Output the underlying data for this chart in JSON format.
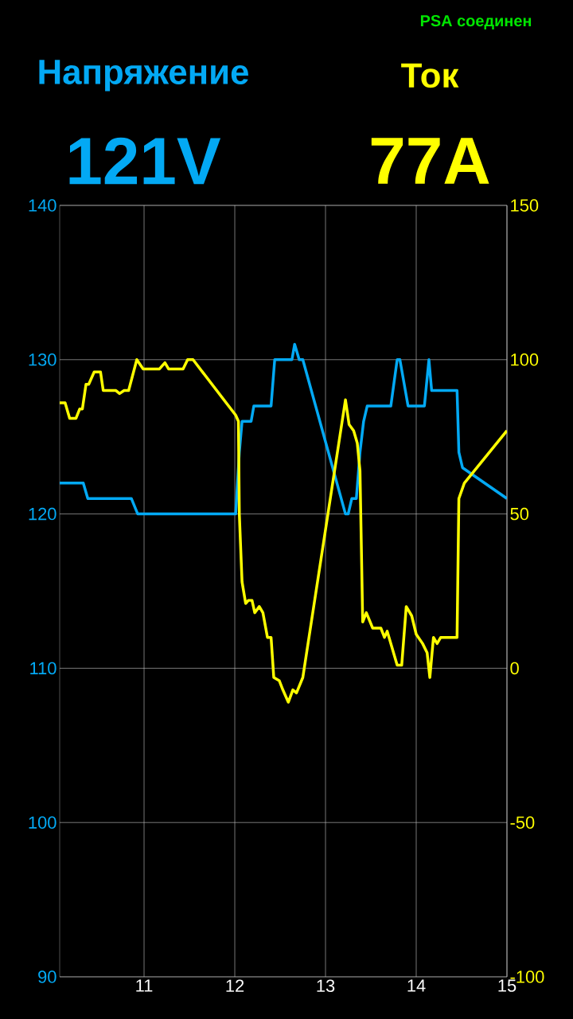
{
  "chart_data": {
    "type": "line",
    "annotations": [
      "PSA соединен",
      "121V",
      "77A"
    ],
    "xlim": [
      10.07,
      15.0
    ],
    "xticks": [
      11,
      12,
      13,
      14,
      15
    ],
    "ylim": [
      90,
      140
    ],
    "yticks": [
      90,
      100,
      110,
      120,
      130,
      140
    ],
    "y2lim": [
      -100,
      150
    ],
    "y2ticks": [
      -100,
      -50,
      0,
      50,
      100,
      150
    ],
    "grid": true,
    "series": [
      {
        "name": "Напряжение",
        "color": "#03a9f4",
        "axis": "y",
        "x": [
          10.07,
          10.33,
          10.38,
          10.86,
          10.93,
          12.01,
          12.05,
          12.08,
          12.18,
          12.21,
          12.4,
          12.44,
          12.63,
          12.66,
          12.71,
          12.75,
          13.22,
          13.25,
          13.29,
          13.34,
          13.38,
          13.42,
          13.46,
          13.72,
          13.79,
          13.82,
          13.91,
          14.09,
          14.14,
          14.17,
          14.45,
          14.47,
          14.51,
          15.0
        ],
        "values": [
          122,
          122,
          121,
          121,
          120,
          120,
          124,
          126,
          126,
          127,
          127,
          130,
          130,
          131,
          130,
          130,
          120,
          120,
          121,
          121,
          124,
          126,
          127,
          127,
          130,
          130,
          127,
          127,
          130,
          128,
          128,
          124,
          123,
          121
        ]
      },
      {
        "name": "Ток",
        "color": "#ffff00",
        "axis": "y2",
        "x": [
          10.07,
          10.13,
          10.18,
          10.25,
          10.29,
          10.32,
          10.36,
          10.39,
          10.45,
          10.52,
          10.55,
          10.69,
          10.73,
          10.78,
          10.83,
          10.92,
          10.99,
          11.17,
          11.23,
          11.27,
          11.43,
          11.48,
          11.54,
          12.01,
          12.04,
          12.05,
          12.08,
          12.12,
          12.15,
          12.19,
          12.22,
          12.27,
          12.31,
          12.36,
          12.4,
          12.43,
          12.49,
          12.53,
          12.59,
          12.64,
          12.68,
          12.75,
          13.22,
          13.26,
          13.31,
          13.35,
          13.38,
          13.41,
          13.45,
          13.52,
          13.61,
          13.65,
          13.68,
          13.73,
          13.79,
          13.84,
          13.89,
          13.95,
          14.0,
          14.07,
          14.12,
          14.15,
          14.19,
          14.23,
          14.27,
          14.45,
          14.47,
          14.53,
          15.0
        ],
        "values": [
          86,
          86,
          81,
          81,
          84,
          84,
          92,
          92,
          96,
          96,
          90,
          90,
          89,
          90,
          90,
          100,
          97,
          97,
          99,
          97,
          97,
          100,
          100,
          82,
          80,
          50,
          28,
          21,
          22,
          22,
          18,
          20,
          18,
          10,
          10,
          -3,
          -4,
          -7,
          -11,
          -7,
          -8,
          -3,
          87,
          79,
          77,
          73,
          64,
          15,
          18,
          13,
          13,
          10,
          12,
          7,
          1,
          1,
          20,
          17,
          11,
          8,
          5,
          -3,
          10,
          8,
          10,
          10,
          55,
          60,
          77
        ]
      }
    ]
  }
}
